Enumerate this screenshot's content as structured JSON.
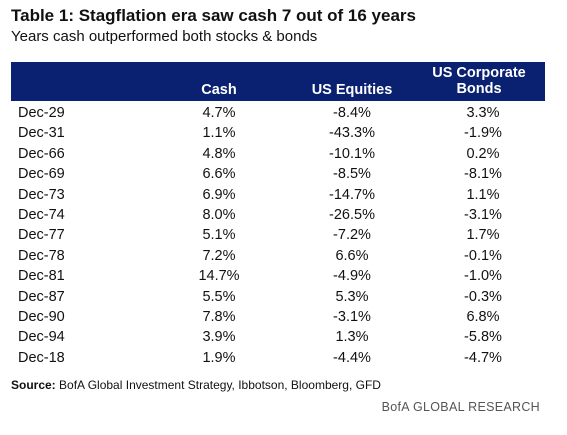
{
  "title": "Table 1: Stagflation era saw cash 7 out of 16 years",
  "subtitle": "Years cash outperformed both stocks & bonds",
  "footer": {
    "source_label": "Source:",
    "source_text": " BofA Global Investment Strategy, Ibbotson, Bloomberg, GFD",
    "brand": "BofA GLOBAL RESEARCH"
  },
  "colors": {
    "header_bg": "#0a2172",
    "header_text": "#ffffff"
  },
  "chart_data": {
    "type": "table",
    "title": "Table 1: Stagflation era saw cash 7 out of 16 years",
    "subtitle": "Years cash outperformed both stocks & bonds",
    "columns": [
      "",
      "Cash",
      "US Equities",
      "US Corporate Bonds"
    ],
    "rows": [
      [
        "Dec-29",
        "4.7%",
        "-8.4%",
        "3.3%"
      ],
      [
        "Dec-31",
        "1.1%",
        "-43.3%",
        "-1.9%"
      ],
      [
        "Dec-66",
        "4.8%",
        "-10.1%",
        "0.2%"
      ],
      [
        "Dec-69",
        "6.6%",
        "-8.5%",
        "-8.1%"
      ],
      [
        "Dec-73",
        "6.9%",
        "-14.7%",
        "1.1%"
      ],
      [
        "Dec-74",
        "8.0%",
        "-26.5%",
        "-3.1%"
      ],
      [
        "Dec-77",
        "5.1%",
        "-7.2%",
        "1.7%"
      ],
      [
        "Dec-78",
        "7.2%",
        "6.6%",
        "-0.1%"
      ],
      [
        "Dec-81",
        "14.7%",
        "-4.9%",
        "-1.0%"
      ],
      [
        "Dec-87",
        "5.5%",
        "5.3%",
        "-0.3%"
      ],
      [
        "Dec-90",
        "7.8%",
        "-3.1%",
        "6.8%"
      ],
      [
        "Dec-94",
        "3.9%",
        "1.3%",
        "-5.8%"
      ],
      [
        "Dec-18",
        "1.9%",
        "-4.4%",
        "-4.7%"
      ]
    ]
  }
}
